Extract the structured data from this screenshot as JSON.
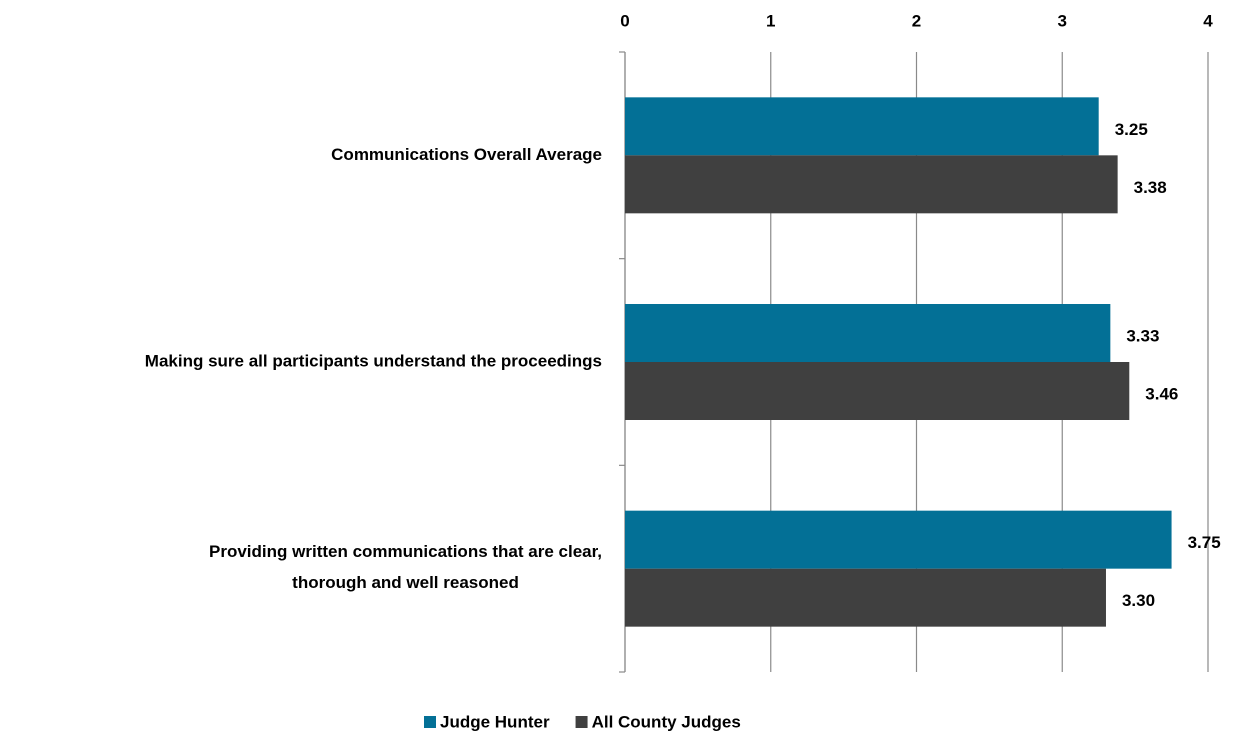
{
  "chart_data": {
    "type": "bar",
    "orientation": "horizontal",
    "categories": [
      "Communications Overall Average",
      "Making sure all participants understand the proceedings",
      "Providing written communications that are clear, thorough and well reasoned"
    ],
    "series": [
      {
        "name": "Judge Hunter",
        "color": "#037096",
        "values": [
          3.25,
          3.33,
          3.75
        ],
        "value_labels": [
          "3.25",
          "3.33",
          "3.75"
        ]
      },
      {
        "name": "All County Judges",
        "color": "#404040",
        "values": [
          3.38,
          3.46,
          3.3
        ],
        "value_labels": [
          "3.38",
          "3.46",
          "3.30"
        ]
      }
    ],
    "xlim": [
      0,
      4
    ],
    "xticks": [
      0,
      1,
      2,
      3,
      4
    ],
    "grid": true,
    "legend": "bottom"
  }
}
